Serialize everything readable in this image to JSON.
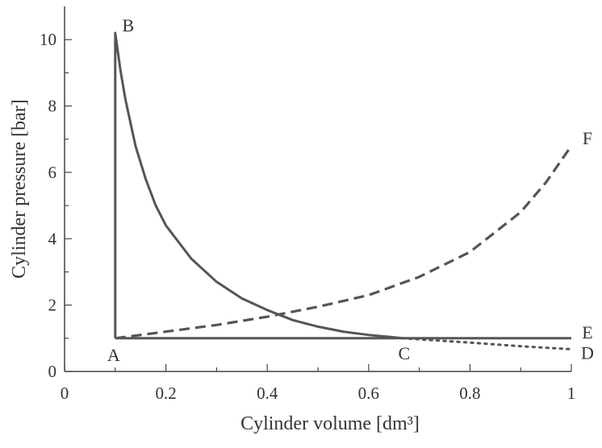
{
  "chart_data": {
    "type": "line",
    "xlabel": "Cylinder volume [dm³]",
    "ylabel": "Cylinder pressure [bar]",
    "xlim": [
      0,
      1
    ],
    "ylim": [
      0,
      11
    ],
    "x_ticks": [
      0,
      0.2,
      0.4,
      0.6,
      0.8,
      1
    ],
    "x_tick_labels": [
      "0",
      "0.2",
      "0.4",
      "0.6",
      "0.8",
      "1"
    ],
    "y_ticks": [
      0,
      2,
      4,
      6,
      8,
      10
    ],
    "y_tick_labels": [
      "0",
      "2",
      "4",
      "6",
      "8",
      "10"
    ],
    "grid": false,
    "colors": {
      "line": "#555555",
      "axis": "#444444",
      "text": "#333333"
    },
    "series": [
      {
        "style": "solid",
        "x": [
          0.1,
          0.1,
          0.11,
          0.12,
          0.14,
          0.16,
          0.18,
          0.2,
          0.25,
          0.3,
          0.35,
          0.4,
          0.45,
          0.5,
          0.55,
          0.6,
          0.65,
          0.667,
          1.0
        ],
        "y": [
          1.0,
          10.2,
          9.1,
          8.2,
          6.8,
          5.8,
          5.0,
          4.4,
          3.4,
          2.7,
          2.2,
          1.85,
          1.55,
          1.35,
          1.2,
          1.1,
          1.03,
          1.0,
          1.0
        ]
      },
      {
        "style": "solid",
        "x": [
          0.1,
          0.667
        ],
        "y": [
          1.0,
          1.0
        ]
      },
      {
        "style": "dashed",
        "x": [
          0.1,
          0.2,
          0.3,
          0.4,
          0.5,
          0.6,
          0.7,
          0.8,
          0.9,
          0.95,
          1.0
        ],
        "y": [
          1.0,
          1.2,
          1.4,
          1.65,
          1.95,
          2.3,
          2.85,
          3.6,
          4.8,
          5.7,
          6.8
        ]
      },
      {
        "style": "dotted",
        "x": [
          0.667,
          0.8,
          0.9,
          1.0
        ],
        "y": [
          1.0,
          0.87,
          0.76,
          0.67
        ]
      }
    ],
    "annotations": [
      {
        "text": "A",
        "x": 0.1,
        "y": 1.0
      },
      {
        "text": "B",
        "x": 0.1,
        "y": 10.2
      },
      {
        "text": "C",
        "x": 0.667,
        "y": 1.0
      },
      {
        "text": "D",
        "x": 1.0,
        "y": 0.67
      },
      {
        "text": "E",
        "x": 1.0,
        "y": 1.05
      },
      {
        "text": "F",
        "x": 1.0,
        "y": 6.8
      }
    ]
  }
}
